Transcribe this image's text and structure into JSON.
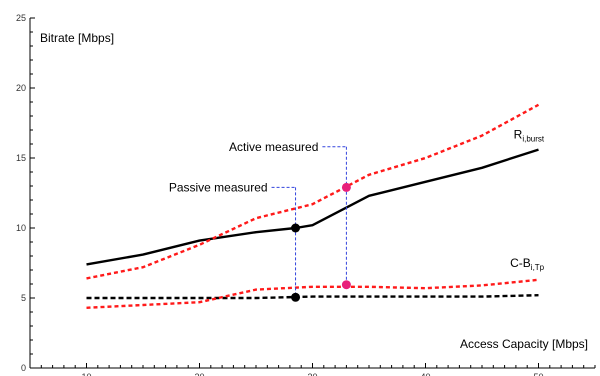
{
  "chart_data": {
    "type": "line",
    "xlabel": "Access Capacity [Mbps]",
    "ylabel": "Bitrate [Mbps]",
    "xlim": [
      5,
      55
    ],
    "ylim": [
      0,
      25
    ],
    "xticks": [
      10,
      20,
      30,
      40,
      50
    ],
    "yticks": [
      0,
      5,
      10,
      15,
      20,
      25
    ],
    "grid": false,
    "series": [
      {
        "name": "Ri,burst",
        "label_main": "R",
        "label_sub": "i,burst",
        "style": "solid",
        "color": "#000000",
        "x": [
          10,
          15,
          20,
          25,
          28.5,
          30,
          35,
          40,
          45,
          50
        ],
        "y": [
          7.4,
          8.1,
          9.1,
          9.7,
          10.0,
          10.2,
          12.3,
          13.3,
          14.3,
          15.6
        ]
      },
      {
        "name": "C-Bi,Tp",
        "label_main": "C-B",
        "label_sub": "i,Tp",
        "style": "dashed",
        "color": "#000000",
        "x": [
          10,
          15,
          20,
          25,
          30,
          35,
          40,
          45,
          50
        ],
        "y": [
          5.0,
          5.0,
          5.0,
          5.0,
          5.1,
          5.1,
          5.1,
          5.1,
          5.2
        ]
      },
      {
        "name": "upper bound",
        "style": "dotted",
        "color": "#ff1a1a",
        "x": [
          10,
          15,
          20,
          25,
          30,
          35,
          40,
          45,
          50
        ],
        "y": [
          6.4,
          7.2,
          8.8,
          10.7,
          11.7,
          13.8,
          15.0,
          16.6,
          18.8
        ]
      },
      {
        "name": "lower bound",
        "style": "dotted",
        "color": "#ff1a1a",
        "x": [
          10,
          15,
          20,
          25,
          30,
          35,
          40,
          45,
          50
        ],
        "y": [
          4.3,
          4.5,
          4.7,
          5.6,
          5.8,
          5.8,
          5.7,
          5.9,
          6.3
        ]
      }
    ],
    "points": [
      {
        "x": 28.5,
        "y": 10.0,
        "color": "#000000"
      },
      {
        "x": 28.5,
        "y": 5.05,
        "color": "#000000"
      },
      {
        "x": 33,
        "y": 12.9,
        "color": "#e8207a"
      },
      {
        "x": 33,
        "y": 5.95,
        "color": "#e8207a"
      }
    ],
    "annotations": [
      {
        "text": "Passive measured",
        "x": 28.5,
        "y_text": 12.9,
        "y_from": 10.0,
        "y_to": 5.05
      },
      {
        "text": "Active measured",
        "x": 33,
        "y_text": 15.8,
        "y_from": 12.9,
        "y_to": 5.95
      }
    ],
    "annotation_color": "#3344dd"
  }
}
